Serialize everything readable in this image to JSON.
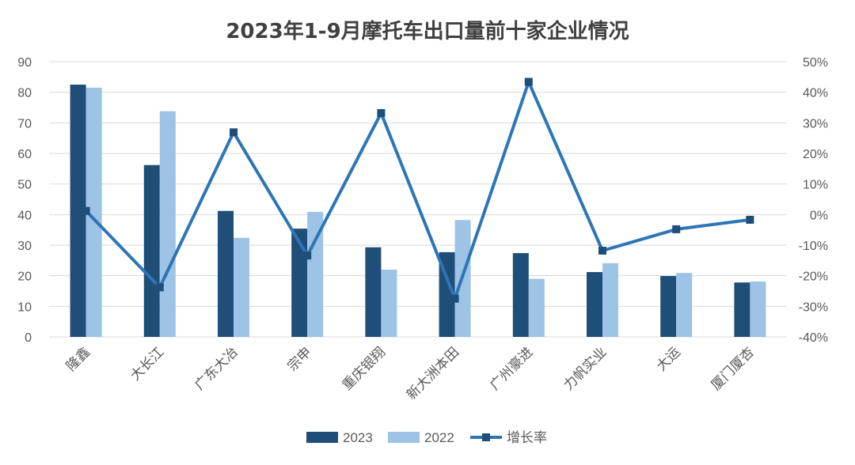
{
  "chart_data": {
    "type": "bar",
    "title": "2023年1-9月摩托车出口量前十家企业情况",
    "categories": [
      "隆鑫",
      "大长江",
      "广东大冶",
      "宗申",
      "重庆银翔",
      "新大洲本田",
      "广州豪进",
      "力帆实业",
      "大运",
      "厦门厦杏"
    ],
    "series": [
      {
        "name": "2023",
        "type": "bar",
        "axis": "left",
        "color": "#1F4E79",
        "values": [
          82.5,
          56.2,
          41.2,
          35.4,
          29.3,
          27.7,
          27.4,
          21.2,
          19.9,
          17.8
        ]
      },
      {
        "name": "2022",
        "type": "bar",
        "axis": "left",
        "color": "#9DC3E6",
        "values": [
          81.5,
          73.8,
          32.4,
          40.9,
          22.0,
          38.2,
          19.0,
          24.1,
          20.9,
          18.1
        ]
      },
      {
        "name": "增长率",
        "type": "line",
        "axis": "right",
        "color": "#2E75B6",
        "values": [
          1.2,
          -23.8,
          26.9,
          -13.4,
          33.2,
          -27.5,
          43.4,
          -11.8,
          -4.8,
          -1.7
        ]
      }
    ],
    "ylim_left": [
      0,
      90
    ],
    "yticks_left": [
      "0",
      "10",
      "20",
      "30",
      "40",
      "50",
      "60",
      "70",
      "80",
      "90"
    ],
    "ylim_right": [
      -40,
      50
    ],
    "yticks_right": [
      "-40%",
      "-30%",
      "-20%",
      "-10%",
      "0%",
      "10%",
      "20%",
      "30%",
      "40%",
      "50%"
    ],
    "grid": true,
    "legend_position": "bottom"
  },
  "legend": {
    "items": [
      "2023",
      "2022",
      "增长率"
    ]
  }
}
